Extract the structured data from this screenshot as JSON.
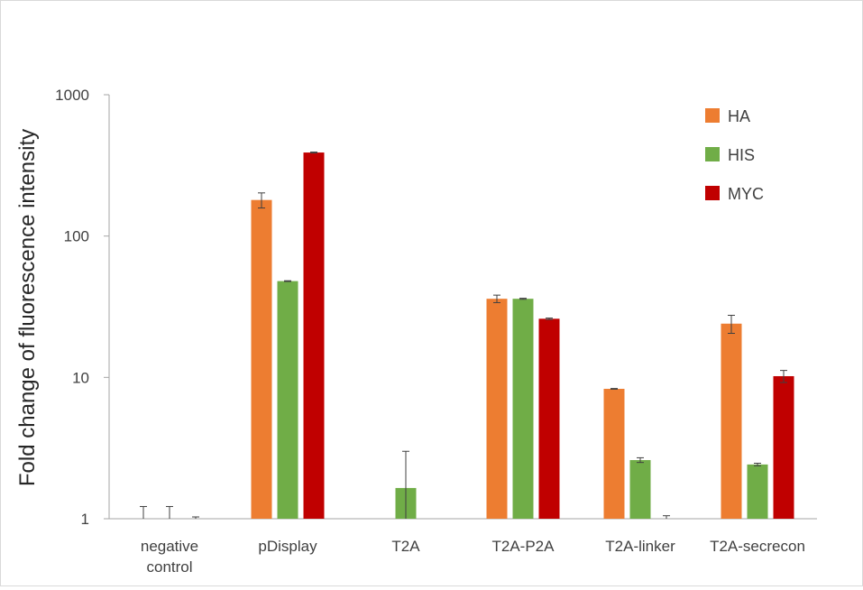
{
  "chart_data": {
    "type": "bar",
    "title": "",
    "xlabel": "",
    "ylabel": "Fold change of fluorescence intensity",
    "yscale": "log",
    "ylim": [
      1,
      1000
    ],
    "yticks": [
      "1",
      "10",
      "100",
      "1000"
    ],
    "ytick_values": [
      1,
      10,
      100,
      1000
    ],
    "grid": false,
    "legend_position": "top-right",
    "categories": [
      [
        "negative",
        "control"
      ],
      [
        "pDisplay"
      ],
      [
        "T2A"
      ],
      [
        "T2A-P2A"
      ],
      [
        "T2A-linker"
      ],
      [
        "T2A-secrecon"
      ]
    ],
    "series": [
      {
        "name": "HA",
        "color": "#ED7D31",
        "values": [
          1.0,
          180,
          null,
          36,
          8.3,
          24
        ],
        "errors": [
          0.22,
          22,
          null,
          2.2,
          0.05,
          3.5
        ]
      },
      {
        "name": "HIS",
        "color": "#70AD47",
        "values": [
          1.0,
          48,
          1.65,
          36,
          2.6,
          2.42
        ],
        "errors": [
          0.22,
          0.3,
          1.35,
          0.3,
          0.1,
          0.05
        ]
      },
      {
        "name": "MYC",
        "color": "#C00000",
        "values": [
          1.0,
          390,
          null,
          26,
          1.0,
          10.2
        ],
        "errors": [
          0.03,
          3,
          null,
          0.3,
          0.05,
          1.0
        ]
      }
    ]
  }
}
